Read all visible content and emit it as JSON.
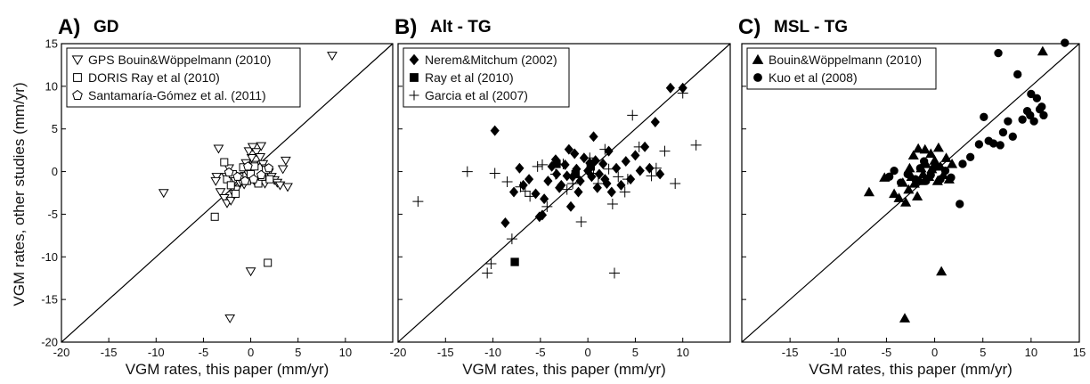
{
  "ylabel": "VGM rates, other studies (mm/yr)",
  "chart_data": [
    {
      "type": "scatter",
      "letter": "A)",
      "title": "GD",
      "xlabel": "VGM rates, this paper (mm/yr)",
      "xlim": [
        -20,
        15
      ],
      "ylim": [
        -20,
        15
      ],
      "xticks": [
        "-20",
        "-15",
        "-10",
        "-5",
        "0",
        "5",
        "10"
      ],
      "yticks": [
        "15",
        "10",
        "5",
        "0",
        "-5",
        "-10",
        "-15",
        "-20"
      ],
      "legend_position": "top-left",
      "series": [
        {
          "name": "GPS Bouin&Wöppelmann (2010)",
          "marker": "triangle-down-open",
          "points": [
            [
              -9.2,
              -2.5
            ],
            [
              8.6,
              13.6
            ],
            [
              -2.2,
              -17.2
            ],
            [
              0,
              -11.7
            ],
            [
              -3.4,
              2.7
            ],
            [
              -3.6,
              -0.6
            ],
            [
              -3.2,
              -2.4
            ],
            [
              -2.8,
              -3.1
            ],
            [
              -2.5,
              -3.7
            ],
            [
              -2.1,
              -3.4
            ],
            [
              -1.8,
              -2.6
            ],
            [
              -1.5,
              -2.1
            ],
            [
              -1.2,
              -1.3
            ],
            [
              -0.9,
              -0.9
            ],
            [
              -0.6,
              -0.5
            ],
            [
              -0.3,
              -0.2
            ],
            [
              0,
              0.3
            ],
            [
              0.3,
              0.8
            ],
            [
              0.1,
              1.6
            ],
            [
              -0.2,
              2.4
            ],
            [
              0.2,
              2.9
            ],
            [
              0.6,
              2.3
            ],
            [
              1,
              1.7
            ],
            [
              1.3,
              0.9
            ],
            [
              1.6,
              0.4
            ],
            [
              1.9,
              -0.1
            ],
            [
              2.2,
              -0.6
            ],
            [
              2.5,
              -1
            ],
            [
              2.8,
              -1.3
            ],
            [
              3.1,
              -1.6
            ],
            [
              3.4,
              0.3
            ],
            [
              3.7,
              1.3
            ],
            [
              3.9,
              -1.8
            ],
            [
              1.1,
              3
            ],
            [
              -2.6,
              -0.6
            ],
            [
              -1.7,
              -1
            ],
            [
              -0.7,
              -1.5
            ],
            [
              0.4,
              -1.1
            ],
            [
              1.5,
              -1.4
            ],
            [
              -1,
              -1.1
            ],
            [
              -3.7,
              -1.1
            ],
            [
              -2.3,
              0.4
            ],
            [
              -0.5,
              1
            ]
          ]
        },
        {
          "name": "DORIS Ray et al (2010)",
          "marker": "square-open",
          "points": [
            [
              -3.8,
              -5.3
            ],
            [
              1.8,
              -10.7
            ],
            [
              -2.8,
              1.1
            ],
            [
              -2.5,
              -0.9
            ],
            [
              -2.1,
              -1.6
            ],
            [
              -1.6,
              -2.6
            ],
            [
              -1.2,
              -0.6
            ],
            [
              -0.8,
              0.5
            ],
            [
              -0.4,
              -1.1
            ],
            [
              0,
              -0.3
            ],
            [
              0.4,
              0.6
            ],
            [
              0.8,
              -1.4
            ],
            [
              1.2,
              -0.6
            ],
            [
              1.6,
              0.2
            ],
            [
              2,
              -0.9
            ],
            [
              -1.9,
              -0.3
            ]
          ]
        },
        {
          "name": "Santamaría-Gómez et al. (2011)",
          "marker": "pentagon-open",
          "points": [
            [
              -2.3,
              -0.1
            ],
            [
              -1.4,
              -0.6
            ],
            [
              -0.6,
              -1.1
            ],
            [
              0.3,
              -0.9
            ],
            [
              1.1,
              -0.4
            ],
            [
              1.9,
              0.4
            ],
            [
              -0.3,
              0.6
            ]
          ]
        }
      ]
    },
    {
      "type": "scatter",
      "letter": "B)",
      "title": "Alt - TG",
      "xlabel": "VGM rates, this paper (mm/yr)",
      "xlim": [
        -20,
        15
      ],
      "ylim": [
        -20,
        15
      ],
      "xticks": [
        "-20",
        "-15",
        "-10",
        "-5",
        "0",
        "5",
        "10"
      ],
      "yticks": [],
      "legend_position": "top-left",
      "series": [
        {
          "name": "Nerem&Mitchum (2002)",
          "marker": "diamond-filled",
          "points": [
            [
              -9.8,
              4.8
            ],
            [
              -8.7,
              -6
            ],
            [
              -7.8,
              -2.4
            ],
            [
              -7.2,
              0.4
            ],
            [
              -6.8,
              -1.6
            ],
            [
              -6.2,
              -0.9
            ],
            [
              -5.5,
              -2.6
            ],
            [
              -5.1,
              -5.3
            ],
            [
              -4.6,
              -3.2
            ],
            [
              -4.2,
              -1.1
            ],
            [
              -3.8,
              0.6
            ],
            [
              -3.3,
              -0.3
            ],
            [
              -2.8,
              -1.6
            ],
            [
              -2.4,
              0.8
            ],
            [
              -2,
              2.6
            ],
            [
              -1.6,
              -0.6
            ],
            [
              -1.2,
              0.3
            ],
            [
              -0.8,
              -1.1
            ],
            [
              -0.4,
              1.6
            ],
            [
              0,
              0.1
            ],
            [
              0.4,
              -0.6
            ],
            [
              0.8,
              1.3
            ],
            [
              1.2,
              -0.3
            ],
            [
              1.6,
              0.9
            ],
            [
              2,
              -1.4
            ],
            [
              2.5,
              -2.4
            ],
            [
              3,
              0.4
            ],
            [
              3.5,
              -1.6
            ],
            [
              4,
              1.2
            ],
            [
              4.5,
              -0.9
            ],
            [
              5,
              1.9
            ],
            [
              5.5,
              0.1
            ],
            [
              6,
              2.9
            ],
            [
              6.5,
              0.4
            ],
            [
              7.1,
              5.8
            ],
            [
              7.6,
              -0.3
            ],
            [
              8.7,
              9.8
            ],
            [
              10,
              9.8
            ],
            [
              -1.4,
              2.1
            ],
            [
              0.6,
              4.1
            ],
            [
              -3,
              -1.9
            ],
            [
              -1,
              -2.4
            ],
            [
              1,
              -1.9
            ],
            [
              -2.2,
              -0.5
            ],
            [
              0.2,
              1
            ],
            [
              2.2,
              2.4
            ],
            [
              -1.8,
              -4.1
            ],
            [
              -4.8,
              -5.1
            ],
            [
              -3.4,
              1.4
            ],
            [
              1.8,
              -0.9
            ]
          ]
        },
        {
          "name": "Ray et al (2010)",
          "marker": "square-filled",
          "points": [
            [
              -7.7,
              -10.6
            ],
            [
              -3.3,
              0.9
            ],
            [
              -1.3,
              -0.3
            ],
            [
              0.3,
              0.6
            ]
          ]
        },
        {
          "name": "Garcia et al (2007)",
          "marker": "plus",
          "points": [
            [
              -17.9,
              -3.5
            ],
            [
              -12.7,
              0
            ],
            [
              -10.6,
              -11.9
            ],
            [
              -9.8,
              -0.2
            ],
            [
              -8.5,
              -1.2
            ],
            [
              -8,
              -7.9
            ],
            [
              -7.1,
              -1.8
            ],
            [
              -6.1,
              -2.9
            ],
            [
              -5.3,
              0.6
            ],
            [
              -4.3,
              -4.1
            ],
            [
              -3.4,
              -0.3
            ],
            [
              -2.6,
              0.9
            ],
            [
              -1.6,
              -1.4
            ],
            [
              -0.7,
              -5.9
            ],
            [
              0.2,
              1.6
            ],
            [
              1.1,
              -1.4
            ],
            [
              1.8,
              2.6
            ],
            [
              2.6,
              -3.8
            ],
            [
              2.8,
              -11.9
            ],
            [
              3.2,
              -0.6
            ],
            [
              3.9,
              -2.4
            ],
            [
              4.7,
              6.6
            ],
            [
              5.4,
              2.9
            ],
            [
              6.7,
              -0.5
            ],
            [
              7.2,
              0.4
            ],
            [
              8.1,
              2.4
            ],
            [
              9.2,
              -1.4
            ],
            [
              10,
              9.2
            ],
            [
              11.4,
              3.1
            ],
            [
              -10.2,
              -10.8
            ],
            [
              -4.8,
              0.8
            ],
            [
              -2.2,
              -2.1
            ],
            [
              0.6,
              -0.2
            ],
            [
              2.2,
              0.3
            ],
            [
              4.2,
              -0.9
            ],
            [
              -6.6,
              -2.3
            ]
          ]
        }
      ]
    },
    {
      "type": "scatter",
      "letter": "C)",
      "title": "MSL - TG",
      "xlabel": "VGM rates, this paper (mm/yr)",
      "xlim": [
        -20,
        15
      ],
      "ylim": [
        -20,
        15
      ],
      "xticks": [
        "-15",
        "-10",
        "-5",
        "0",
        "5",
        "10",
        "15"
      ],
      "yticks": [],
      "legend_position": "top-left",
      "series": [
        {
          "name": "Bouin&Wöppelmann (2010)",
          "marker": "triangle-up-filled",
          "points": [
            [
              -6.8,
              -2.4
            ],
            [
              -5.2,
              -0.7
            ],
            [
              -4.2,
              -2.6
            ],
            [
              -3.7,
              -3.1
            ],
            [
              -3.3,
              -1.3
            ],
            [
              -3,
              -3.6
            ],
            [
              -2.7,
              -2.1
            ],
            [
              -2.4,
              -0.6
            ],
            [
              -2.1,
              -1.4
            ],
            [
              -1.8,
              -2.9
            ],
            [
              -1.5,
              -1.1
            ],
            [
              -1.2,
              -0.3
            ],
            [
              -0.9,
              0.9
            ],
            [
              -0.6,
              -0.6
            ],
            [
              -0.3,
              0.3
            ],
            [
              0,
              1.3
            ],
            [
              0.3,
              -1.1
            ],
            [
              0.6,
              0.6
            ],
            [
              0.9,
              -0.4
            ],
            [
              1.2,
              1.6
            ],
            [
              1.5,
              -0.9
            ],
            [
              1.8,
              0.9
            ],
            [
              -2.2,
              1.9
            ],
            [
              -1.7,
              2.7
            ],
            [
              -1,
              2.6
            ],
            [
              -0.4,
              2.1
            ],
            [
              0.4,
              2.8
            ],
            [
              0.7,
              -11.7
            ],
            [
              -3.1,
              -17.2
            ],
            [
              11.2,
              14.1
            ],
            [
              -2.6,
              0.4
            ],
            [
              -1.4,
              0.4
            ]
          ]
        },
        {
          "name": "Kuo et al (2008)",
          "marker": "circle-filled",
          "points": [
            [
              -4.7,
              -0.6
            ],
            [
              -3.5,
              -1.3
            ],
            [
              -2.8,
              -0.3
            ],
            [
              -2,
              -0.9
            ],
            [
              -1.5,
              0.4
            ],
            [
              -0.9,
              -1.1
            ],
            [
              -0.4,
              -0.4
            ],
            [
              0.1,
              0.6
            ],
            [
              0.6,
              -0.9
            ],
            [
              1.1,
              0.1
            ],
            [
              1.7,
              -0.7
            ],
            [
              2.6,
              -3.8
            ],
            [
              2.9,
              0.9
            ],
            [
              3.7,
              1.7
            ],
            [
              4.6,
              3.2
            ],
            [
              5.1,
              6.4
            ],
            [
              5.6,
              3.6
            ],
            [
              6.1,
              3.3
            ],
            [
              6.6,
              13.9
            ],
            [
              7.1,
              4.6
            ],
            [
              7.6,
              5.9
            ],
            [
              8.1,
              4.1
            ],
            [
              8.6,
              11.4
            ],
            [
              9.1,
              6.1
            ],
            [
              9.6,
              7.1
            ],
            [
              10,
              9.1
            ],
            [
              10.3,
              5.9
            ],
            [
              10.6,
              8.6
            ],
            [
              10.9,
              7.3
            ],
            [
              11.1,
              7.6
            ],
            [
              11.3,
              6.6
            ],
            [
              13.5,
              15.1
            ],
            [
              9.9,
              6.6
            ],
            [
              6.8,
              3.1
            ],
            [
              -4.2,
              0.1
            ],
            [
              -1.1,
              1.2
            ]
          ]
        }
      ]
    }
  ]
}
